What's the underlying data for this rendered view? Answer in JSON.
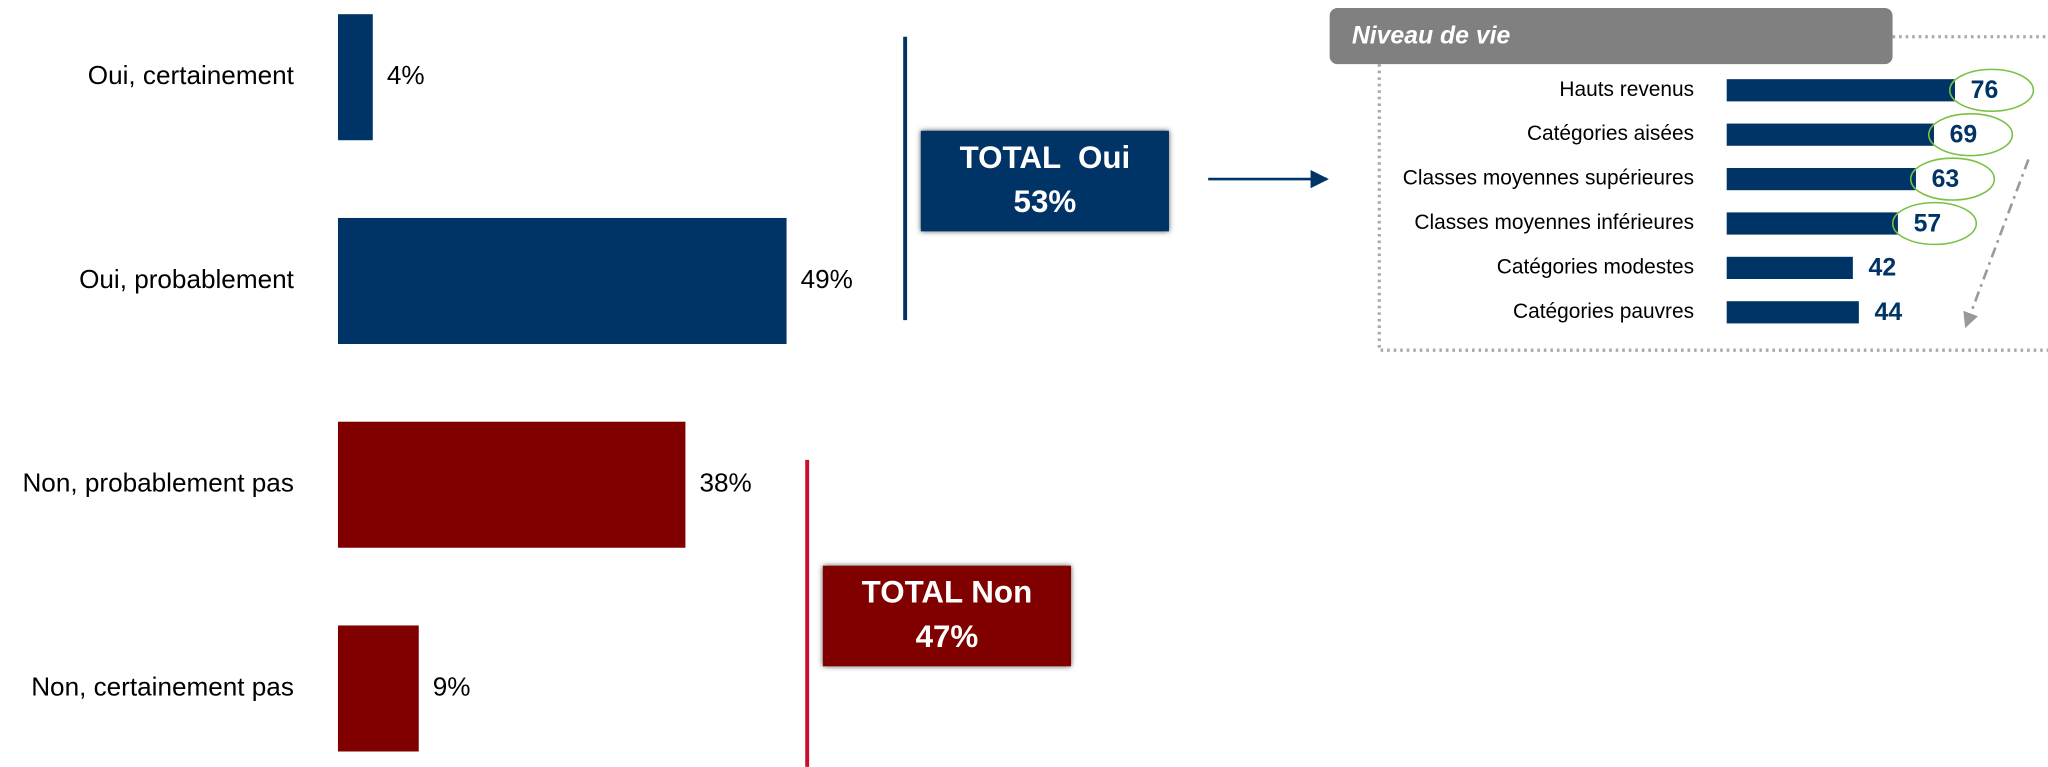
{
  "chart_data": [
    {
      "type": "bar",
      "orientation": "horizontal",
      "categories": [
        "Oui, certainement",
        "Oui, probablement",
        "Non, probablement pas",
        "Non, certainement pas"
      ],
      "values": [
        4,
        49,
        38,
        9
      ],
      "value_labels": [
        "4%",
        "49%",
        "38%",
        "9%"
      ],
      "colors": [
        "#003366",
        "#003366",
        "#800000",
        "#800000"
      ],
      "annotations": [
        {
          "text": "TOTAL  Oui",
          "value": 53,
          "value_label": "53%",
          "color": "#003366"
        },
        {
          "text": "TOTAL Non",
          "value": 47,
          "value_label": "47%",
          "color": "#800000"
        }
      ]
    },
    {
      "type": "bar",
      "orientation": "horizontal",
      "title": "Niveau de vie",
      "categories": [
        "Hauts revenus",
        "Catégories aisées",
        "Classes moyennes supérieures",
        "Classes moyennes inférieures",
        "Catégories modestes",
        "Catégories pauvres"
      ],
      "values": [
        76,
        69,
        63,
        57,
        42,
        44
      ],
      "color": "#003366"
    }
  ]
}
